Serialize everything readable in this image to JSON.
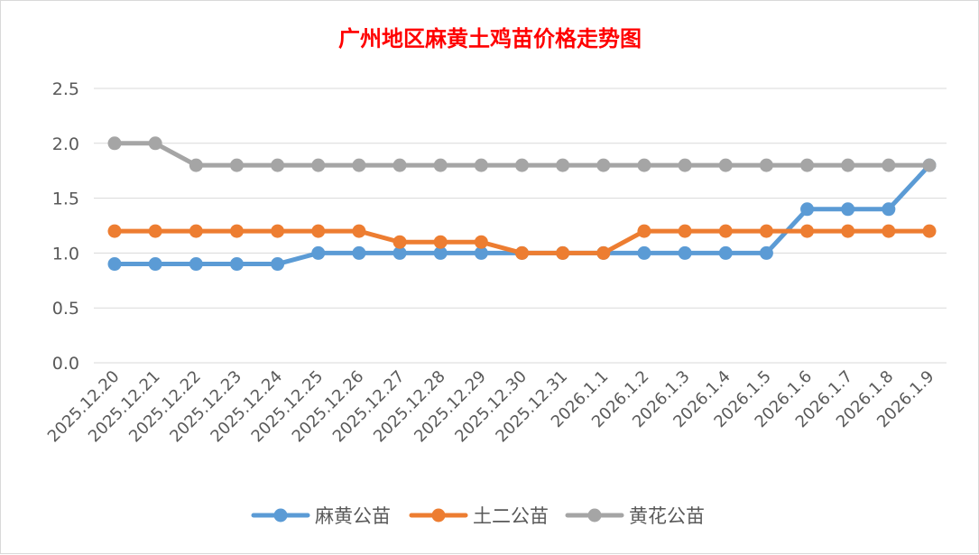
{
  "chart_data": {
    "type": "line",
    "title": "广州地区麻黄土鸡苗价格走势图",
    "xlabel": "",
    "ylabel": "",
    "ylim": [
      0,
      2.5
    ],
    "yticks": [
      "0.0",
      "0.5",
      "1.0",
      "1.5",
      "2.0",
      "2.5"
    ],
    "grid": true,
    "legend_position": "bottom",
    "categories": [
      "2025.12.20",
      "2025.12.21",
      "2025.12.22",
      "2025.12.23",
      "2025.12.24",
      "2025.12.25",
      "2025.12.26",
      "2025.12.27",
      "2025.12.28",
      "2025.12.29",
      "2025.12.30",
      "2025.12.31",
      "2026.1.1",
      "2026.1.2",
      "2026.1.3",
      "2026.1.4",
      "2026.1.5",
      "2026.1.6",
      "2026.1.7",
      "2026.1.8",
      "2026.1.9"
    ],
    "series": [
      {
        "name": "麻黄公苗",
        "color": "#5b9bd5",
        "values": [
          0.9,
          0.9,
          0.9,
          0.9,
          0.9,
          1.0,
          1.0,
          1.0,
          1.0,
          1.0,
          1.0,
          1.0,
          1.0,
          1.0,
          1.0,
          1.0,
          1.0,
          1.4,
          1.4,
          1.4,
          1.8
        ]
      },
      {
        "name": "土二公苗",
        "color": "#ed7d31",
        "values": [
          1.2,
          1.2,
          1.2,
          1.2,
          1.2,
          1.2,
          1.2,
          1.1,
          1.1,
          1.1,
          1.0,
          1.0,
          1.0,
          1.2,
          1.2,
          1.2,
          1.2,
          1.2,
          1.2,
          1.2,
          1.2
        ]
      },
      {
        "name": "黄花公苗",
        "color": "#a5a5a5",
        "values": [
          2.0,
          2.0,
          1.8,
          1.8,
          1.8,
          1.8,
          1.8,
          1.8,
          1.8,
          1.8,
          1.8,
          1.8,
          1.8,
          1.8,
          1.8,
          1.8,
          1.8,
          1.8,
          1.8,
          1.8,
          1.8
        ]
      }
    ]
  }
}
